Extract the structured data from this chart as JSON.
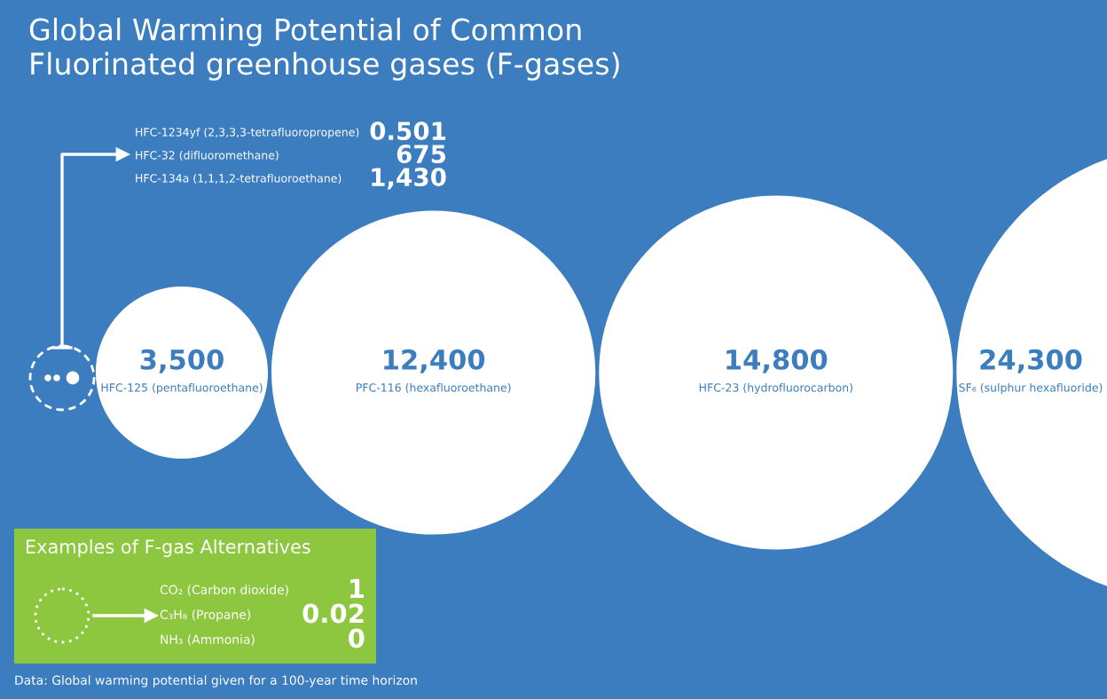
{
  "chart_data": [
    {
      "type": "other",
      "title": "Global Warming Potential of Common\nFluorinated greenhouse gases (F-gases)",
      "categories": [
        "HFC-125 (pentafluoroethane)",
        "PFC-116 (hexafluoroethane)",
        "HFC-23 (hydrofluorocarbon)",
        "SF₆ (sulphur hexafluoride)"
      ],
      "values": [
        3500,
        12400,
        14800,
        24300
      ],
      "value_labels": [
        "3,500",
        "12,400",
        "14,800",
        "24,300"
      ],
      "annotations": [
        "Data: Global warming potential given for a 100-year time horizon"
      ]
    },
    {
      "type": "other",
      "categories": [
        "HFC-1234yf (2,3,3,3-tetrafluoropropene)",
        "HFC-32 (difluoromethane)",
        "HFC-134a (1,1,1,2-tetrafluoroethane)"
      ],
      "values": [
        0.501,
        675,
        1430
      ],
      "value_labels": [
        "0.501",
        "675",
        "1,430"
      ]
    },
    {
      "type": "other",
      "title": "Examples of F-gas Alternatives",
      "categories": [
        "CO₂ (Carbon dioxide)",
        "C₃H₈ (Propane)",
        "NH₃ (Ammonia)"
      ],
      "values": [
        1,
        0.02,
        0
      ],
      "value_labels": [
        "1",
        "0.02",
        "0"
      ]
    }
  ]
}
